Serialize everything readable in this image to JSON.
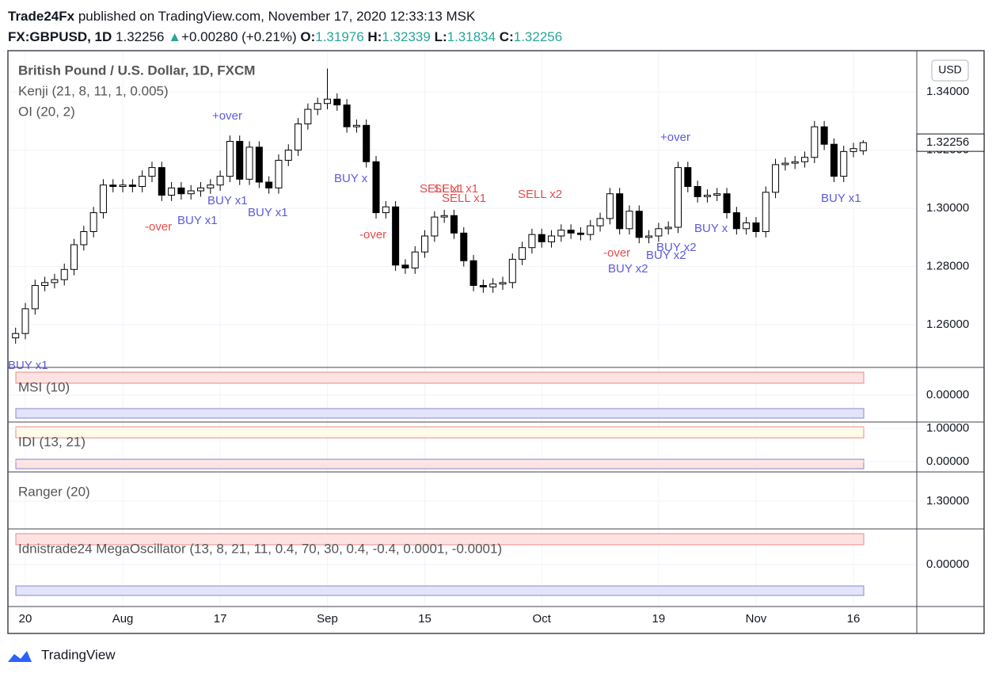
{
  "header": {
    "publisher": "Trade24Fx",
    "published": "published on TradingView.com, November 17, 2020 12:33:13 MSK",
    "symbol": "FX:GBPUSD, 1D",
    "arrow": "▲",
    "change": "+0.00280 (+0.21%)",
    "o": "O:",
    "h": "H:",
    "l": "L:",
    "c": "C:"
  },
  "currency": "USD",
  "footer": "TradingView",
  "chart_data": {
    "type": "candlestick",
    "title": "British Pound / U.S. Dollar, 1D, FXCM",
    "indicators": [
      "Kenji (21, 8, 11, 1, 0.005)",
      "OI (20, 2)"
    ],
    "up_color": "#ffffff",
    "down_color": "#000000",
    "categories": [
      null,
      "20",
      null,
      null,
      null,
      null,
      null,
      null,
      null,
      null,
      null,
      "Aug",
      null,
      null,
      null,
      null,
      null,
      null,
      null,
      null,
      null,
      "17",
      null,
      null,
      null,
      null,
      null,
      null,
      null,
      null,
      null,
      null,
      "Sep",
      null,
      null,
      null,
      null,
      null,
      null,
      null,
      null,
      null,
      "15",
      null,
      null,
      null,
      null,
      null,
      null,
      null,
      null,
      null,
      null,
      null,
      "Oct",
      null,
      null,
      null,
      null,
      null,
      null,
      null,
      null,
      null,
      null,
      null,
      "19",
      null,
      null,
      null,
      null,
      null,
      null,
      null,
      null,
      null,
      "Nov",
      null,
      null,
      null,
      null,
      null,
      null,
      null,
      null,
      null,
      "16",
      null
    ],
    "open": [
      1.2555,
      1.257,
      1.2655,
      1.2735,
      1.2745,
      1.2755,
      1.279,
      1.2875,
      1.292,
      1.2985,
      1.308,
      1.3075,
      1.308,
      1.3075,
      1.311,
      1.314,
      1.3045,
      1.307,
      1.305,
      1.306,
      1.307,
      1.308,
      1.311,
      1.323,
      1.31,
      1.321,
      1.309,
      1.307,
      1.3165,
      1.32,
      1.329,
      1.334,
      1.336,
      1.3375,
      1.3355,
      1.328,
      1.3285,
      1.316,
      1.2985,
      1.3005,
      1.2805,
      1.2795,
      1.285,
      1.2905,
      1.297,
      1.2975,
      1.2915,
      1.282,
      1.2735,
      1.273,
      1.274,
      1.2745,
      1.2825,
      1.2865,
      1.291,
      1.2885,
      1.2905,
      1.2925,
      1.2915,
      1.291,
      1.294,
      1.2965,
      1.305,
      1.293,
      1.299,
      1.29,
      1.2905,
      1.293,
      1.2935,
      1.314,
      1.3075,
      1.304,
      1.3045,
      1.305,
      1.2985,
      1.293,
      1.295,
      1.292,
      1.3055,
      1.315,
      1.3155,
      1.316,
      1.3175,
      1.328,
      1.322,
      1.311,
      1.3195,
      1.31976
    ],
    "high": [
      1.259,
      1.2675,
      1.2755,
      1.2765,
      1.2775,
      1.281,
      1.2895,
      1.294,
      1.3005,
      1.31,
      1.31,
      1.31,
      1.31,
      1.313,
      1.316,
      1.316,
      1.309,
      1.309,
      1.308,
      1.309,
      1.31,
      1.313,
      1.325,
      1.325,
      1.323,
      1.323,
      1.311,
      1.3185,
      1.322,
      1.331,
      1.336,
      1.338,
      1.348,
      1.3395,
      1.3375,
      1.3305,
      1.3305,
      1.318,
      1.3025,
      1.3025,
      1.2825,
      1.287,
      1.2925,
      1.299,
      1.2995,
      1.2995,
      1.2935,
      1.284,
      1.2755,
      1.276,
      1.2765,
      1.2845,
      1.2885,
      1.293,
      1.293,
      1.2925,
      1.2945,
      1.2945,
      1.2935,
      1.296,
      1.2985,
      1.307,
      1.307,
      1.301,
      1.301,
      1.2925,
      1.295,
      1.2955,
      1.316,
      1.316,
      1.3095,
      1.3065,
      1.307,
      1.307,
      1.3005,
      1.297,
      1.297,
      1.3075,
      1.317,
      1.3175,
      1.318,
      1.3195,
      1.33,
      1.33,
      1.324,
      1.3215,
      1.3225,
      1.32339
    ],
    "low": [
      1.2535,
      1.255,
      1.2635,
      1.2715,
      1.2725,
      1.2735,
      1.277,
      1.2855,
      1.29,
      1.2965,
      1.3055,
      1.3055,
      1.3055,
      1.3055,
      1.309,
      1.3025,
      1.3025,
      1.303,
      1.303,
      1.304,
      1.305,
      1.306,
      1.309,
      1.308,
      1.308,
      1.307,
      1.305,
      1.305,
      1.3145,
      1.318,
      1.327,
      1.332,
      1.334,
      1.3335,
      1.326,
      1.326,
      1.314,
      1.2965,
      1.2965,
      1.2785,
      1.2775,
      1.2775,
      1.283,
      1.2885,
      1.295,
      1.2895,
      1.28,
      1.2715,
      1.271,
      1.271,
      1.272,
      1.2725,
      1.2805,
      1.2845,
      1.2865,
      1.2865,
      1.2885,
      1.2895,
      1.289,
      1.289,
      1.292,
      1.2945,
      1.291,
      1.291,
      1.288,
      1.288,
      1.2885,
      1.291,
      1.2915,
      1.3055,
      1.302,
      1.302,
      1.3025,
      1.2965,
      1.291,
      1.291,
      1.29,
      1.29,
      1.3035,
      1.313,
      1.3135,
      1.314,
      1.3155,
      1.32,
      1.309,
      1.309,
      1.3175,
      1.31834
    ],
    "close": [
      1.257,
      1.2655,
      1.2735,
      1.2745,
      1.2755,
      1.279,
      1.2875,
      1.292,
      1.2985,
      1.308,
      1.3075,
      1.308,
      1.3075,
      1.311,
      1.314,
      1.3045,
      1.307,
      1.305,
      1.306,
      1.307,
      1.308,
      1.311,
      1.323,
      1.31,
      1.321,
      1.309,
      1.307,
      1.3165,
      1.32,
      1.329,
      1.334,
      1.336,
      1.3375,
      1.3355,
      1.328,
      1.3285,
      1.316,
      1.2985,
      1.3005,
      1.2805,
      1.2795,
      1.285,
      1.2905,
      1.297,
      1.2975,
      1.2915,
      1.282,
      1.2735,
      1.273,
      1.274,
      1.2745,
      1.2825,
      1.2865,
      1.291,
      1.2885,
      1.2905,
      1.2925,
      1.2915,
      1.291,
      1.294,
      1.2965,
      1.305,
      1.293,
      1.299,
      1.29,
      1.2905,
      1.293,
      1.2935,
      1.314,
      1.3075,
      1.304,
      1.3045,
      1.305,
      1.2985,
      1.293,
      1.295,
      1.292,
      1.3055,
      1.315,
      1.3155,
      1.316,
      1.3175,
      1.328,
      1.322,
      1.311,
      1.3195,
      1.3205,
      1.32256
    ],
    "ylim": [
      1.2459,
      1.3536
    ],
    "yticks": [
      {
        "value": 1.34,
        "label": "1.34000"
      },
      {
        "value": 1.32,
        "label": "1.32000"
      },
      {
        "value": 1.3,
        "label": "1.30000"
      },
      {
        "value": 1.28,
        "label": "1.28000"
      },
      {
        "value": 1.26,
        "label": "1.26000"
      }
    ],
    "grid": true,
    "annotations": [
      "+over",
      "-over",
      "BUY x1",
      "BUY x1",
      "BUY x1",
      "BUY x",
      "-over",
      "SELL x1",
      "SELL x1",
      "SELL x1",
      "SELL x2",
      "-over",
      "BUY x2",
      "BUY x2",
      "BUY x2",
      "+over",
      "BUY x",
      "BUY x1",
      "BUY x1"
    ],
    "panels": [
      {
        "label": "MSI (10)",
        "ylim": [
          -1,
          1
        ],
        "ticks": [
          {
            "value": 0,
            "label": "0.00000"
          }
        ]
      },
      {
        "label": "IDI (13, 21)",
        "ylim": [
          -0.31,
          1.14
        ],
        "ticks": [
          {
            "value": 1,
            "label": "1.00000"
          },
          {
            "value": 0,
            "label": "0.00000"
          }
        ]
      },
      {
        "label": "Ranger (20)",
        "ylim": [
          1.25,
          1.35
        ],
        "ticks": [
          {
            "value": 1.3,
            "label": "1.30000"
          }
        ]
      },
      {
        "label": "Idnistrade24 MegaOscillator (13, 8, 21, 11, 0.4, 70, 30, 0.4, -0.4, 0.0001, -0.0001)",
        "ylim": [
          -1,
          1
        ],
        "ticks": [
          {
            "value": 0,
            "label": "0.00000"
          }
        ]
      }
    ]
  }
}
